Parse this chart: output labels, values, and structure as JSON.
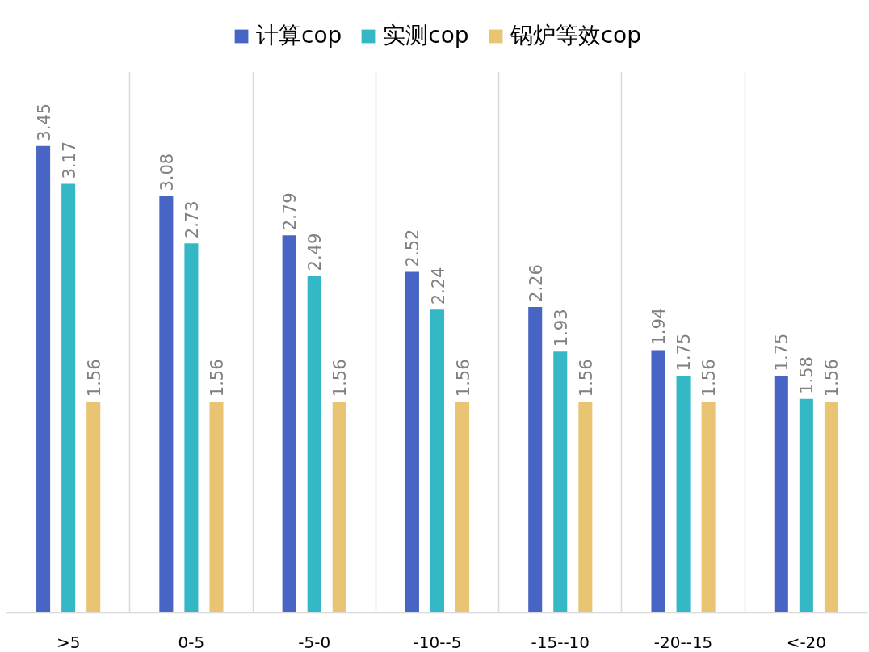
{
  "chart_data": {
    "type": "bar",
    "categories": [
      ">5",
      "0-5",
      "-5-0",
      "-10--5",
      "-15--10",
      "-20--15",
      "<-20"
    ],
    "series": [
      {
        "name": "计算cop",
        "color": "#4865c6",
        "values": [
          3.45,
          3.08,
          2.79,
          2.52,
          2.26,
          1.94,
          1.75
        ]
      },
      {
        "name": "实测cop",
        "color": "#35b8c6",
        "values": [
          3.17,
          2.73,
          2.49,
          2.24,
          1.93,
          1.75,
          1.58
        ]
      },
      {
        "name": "锅炉等效cop",
        "color": "#e8c473",
        "values": [
          1.56,
          1.56,
          1.56,
          1.56,
          1.56,
          1.56,
          1.56
        ]
      }
    ],
    "ylim": [
      0,
      4
    ],
    "tick_labels": "x",
    "grid": "x",
    "legend": "top",
    "data_labels": true
  }
}
